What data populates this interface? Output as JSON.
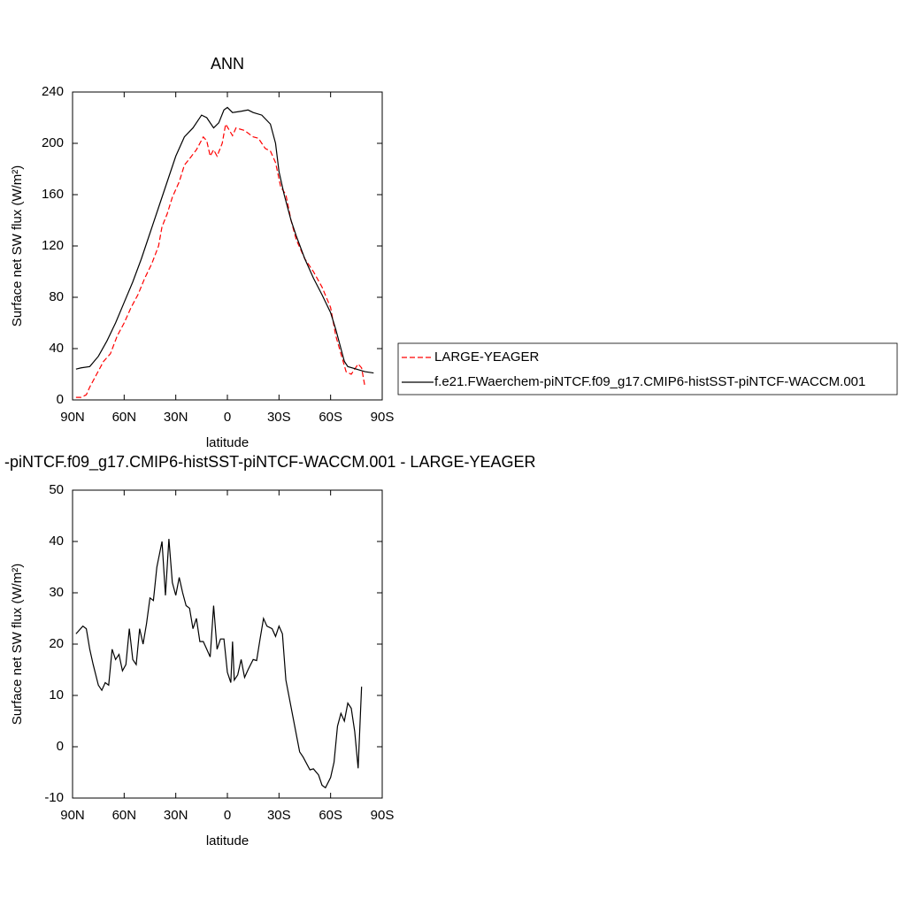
{
  "chart_data": [
    {
      "type": "line",
      "title": "ANN",
      "xlabel": "latitude",
      "ylabel": "Surface net SW flux (W/m²)",
      "x": [
        88,
        85,
        80,
        75,
        70,
        65,
        60,
        55,
        50,
        45,
        40,
        35,
        30,
        25,
        20,
        15,
        12,
        8,
        5,
        2,
        0,
        -3,
        -8,
        -12,
        -15,
        -20,
        -25,
        -28,
        -30,
        -33,
        -37,
        -40,
        -45,
        -50,
        -55,
        -60,
        -63,
        -66,
        -68,
        -70,
        -75,
        -80,
        -85
      ],
      "series": [
        {
          "name": "LARGE-YEAGER",
          "color": "#ff0000",
          "dashed": true,
          "x": [
            88,
            85,
            82,
            80,
            76,
            72,
            68,
            64,
            60,
            56,
            52,
            48,
            44,
            40,
            38,
            35,
            32,
            28,
            25,
            22,
            18,
            14,
            12,
            10,
            8,
            6,
            3,
            1,
            -3,
            -5,
            -10,
            -15,
            -18,
            -22,
            -25,
            -28,
            -31,
            -34,
            -37,
            -40,
            -45,
            -50,
            -55,
            -60,
            -63,
            -66,
            -69,
            -72,
            -76,
            -78,
            -80
          ],
          "values": [
            2,
            2,
            4,
            10,
            20,
            30,
            36,
            50,
            60,
            72,
            82,
            95,
            106,
            120,
            135,
            145,
            158,
            170,
            183,
            188,
            195,
            205,
            202,
            190,
            195,
            190,
            200,
            215,
            206,
            212,
            210,
            205,
            204,
            196,
            194,
            185,
            166,
            160,
            140,
            125,
            110,
            100,
            88,
            72,
            50,
            36,
            22,
            20,
            28,
            25,
            10
          ]
        },
        {
          "name": "f.e21.FWaerchem-piNTCF.f09_g17.CMIP6-histSST-piNTCF-WACCM.001",
          "color": "#000000",
          "dashed": false,
          "values": [
            24,
            25,
            26,
            34,
            46,
            60,
            76,
            92,
            110,
            130,
            150,
            170,
            190,
            205,
            212,
            222,
            220,
            212,
            216,
            226,
            228,
            224,
            225,
            226,
            224,
            222,
            215,
            200,
            178,
            160,
            140,
            128,
            110,
            95,
            82,
            68,
            55,
            40,
            30,
            26,
            24,
            22,
            21
          ]
        }
      ],
      "xlim": [
        90,
        -90
      ],
      "xticks": [
        {
          "value": 90,
          "label": "90N"
        },
        {
          "value": 60,
          "label": "60N"
        },
        {
          "value": 30,
          "label": "30N"
        },
        0,
        {
          "value": -30,
          "label": "30S"
        },
        {
          "value": -60,
          "label": "60S"
        },
        {
          "value": -90,
          "label": "90S"
        }
      ],
      "ylim": [
        0,
        240
      ],
      "yticks": [
        0,
        40,
        80,
        120,
        160,
        200,
        240
      ],
      "legend": "right"
    },
    {
      "type": "line",
      "title": "-piNTCF.f09_g17.CMIP6-histSST-piNTCF-WACCM.001 - LARGE-YEAGER",
      "xlabel": "latitude",
      "ylabel": "Surface net SW flux (W/m²)",
      "x": [
        88,
        84,
        82,
        80,
        78,
        75,
        73,
        71,
        69,
        67,
        65,
        63,
        61,
        59,
        57,
        55,
        53,
        51,
        49,
        47,
        45,
        43,
        41,
        38,
        36,
        34,
        32,
        30,
        28,
        26,
        24,
        22,
        20,
        18,
        16,
        14,
        12,
        10,
        8,
        6,
        4,
        2,
        0,
        -2,
        -3,
        -4,
        -6,
        -8,
        -10,
        -12,
        -15,
        -17,
        -19,
        -21,
        -23,
        -26,
        -28,
        -30,
        -32,
        -34,
        -38,
        -42,
        -44,
        -48,
        -50,
        -53,
        -55,
        -57,
        -60,
        -62,
        -64,
        -66,
        -68,
        -70,
        -72,
        -74,
        -76,
        -78
      ],
      "series": [
        {
          "color": "#000000",
          "dashed": false,
          "values": [
            22,
            23.5,
            23,
            19,
            16,
            12,
            11,
            12.5,
            12,
            19,
            17,
            18,
            14.8,
            16,
            23,
            17,
            16,
            23,
            20,
            24,
            29,
            28.5,
            35,
            40,
            29.5,
            40.5,
            32,
            29.5,
            33,
            30,
            27.5,
            27,
            23,
            25,
            20.5,
            20.5,
            19,
            17.5,
            27.5,
            19,
            21,
            21,
            14.5,
            12.5,
            20.5,
            13,
            14,
            17,
            13.5,
            15,
            17,
            16.8,
            21,
            25,
            23.5,
            23,
            21.5,
            23.5,
            22,
            13,
            6,
            -1,
            -2,
            -4.5,
            -4.3,
            -5.5,
            -7.5,
            -8,
            -6,
            -3,
            4,
            6.5,
            5,
            8.5,
            7.5,
            3,
            -4.2,
            11.7
          ]
        }
      ],
      "xlim": [
        90,
        -90
      ],
      "xticks": [
        {
          "value": 90,
          "label": "90N"
        },
        {
          "value": 60,
          "label": "60N"
        },
        {
          "value": 30,
          "label": "30N"
        },
        0,
        {
          "value": -30,
          "label": "30S"
        },
        {
          "value": -60,
          "label": "60S"
        },
        {
          "value": -90,
          "label": "90S"
        }
      ],
      "ylim": [
        -10,
        50
      ],
      "yticks": [
        -10,
        0,
        10,
        20,
        30,
        40,
        50
      ]
    }
  ]
}
